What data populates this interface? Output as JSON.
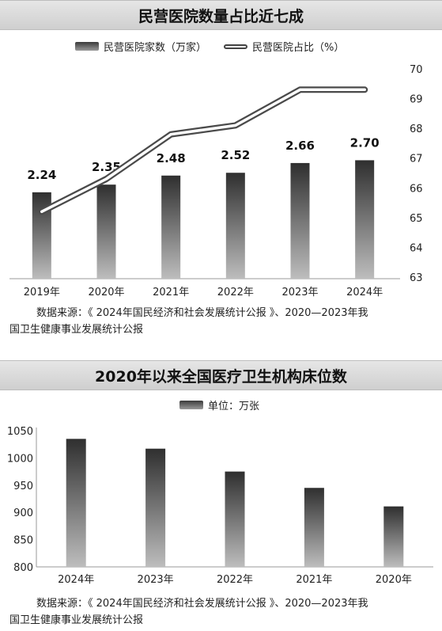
{
  "chart_data": [
    {
      "type": "bar",
      "title": "民营医院数量占比近七成",
      "categories": [
        "2019年",
        "2020年",
        "2021年",
        "2022年",
        "2023年",
        "2024年"
      ],
      "series": [
        {
          "name": "民营医院家数（万家）",
          "type": "bar",
          "values": [
            2.24,
            2.35,
            2.48,
            2.52,
            2.66,
            2.7
          ],
          "labels": [
            "2.24",
            "2.35",
            "2.48",
            "2.52",
            "2.66",
            "2.70"
          ]
        },
        {
          "name": "民营医院占比（%）",
          "type": "line",
          "axis": "right",
          "values": [
            65.2,
            66.3,
            67.8,
            68.1,
            69.3,
            69.3
          ]
        }
      ],
      "y2lim": [
        63,
        70
      ],
      "y2ticks": [
        "63",
        "64",
        "65",
        "66",
        "67",
        "68",
        "69",
        "70"
      ],
      "grid": false,
      "legend": "top",
      "source_line1": "数据来源：《 2024年国民经济和社会发展统计公报 》、2020—2023年我",
      "source_line2": "国卫生健康事业发展统计公报"
    },
    {
      "type": "bar",
      "title": "2020年以来全国医疗卫生机构床位数",
      "categories": [
        "2024年",
        "2023年",
        "2022年",
        "2021年",
        "2020年"
      ],
      "series": [
        {
          "name": "单位：万张",
          "values": [
            1035,
            1017,
            975,
            945,
            911
          ]
        }
      ],
      "ylim": [
        800,
        1050
      ],
      "yticks": [
        "800",
        "850",
        "900",
        "950",
        "1000",
        "1050"
      ],
      "grid": false,
      "legend": "top",
      "source_line1": "数据来源：《 2024年国民经济和社会发展统计公报 》、2020—2023年我",
      "source_line2": "国卫生健康事业发展统计公报"
    }
  ],
  "colors": {
    "bar_top": "#2f2f2f",
    "bar_bottom": "#bdbdbd",
    "line": "#4a4a4a",
    "title_bg": "#d9d9d9"
  }
}
